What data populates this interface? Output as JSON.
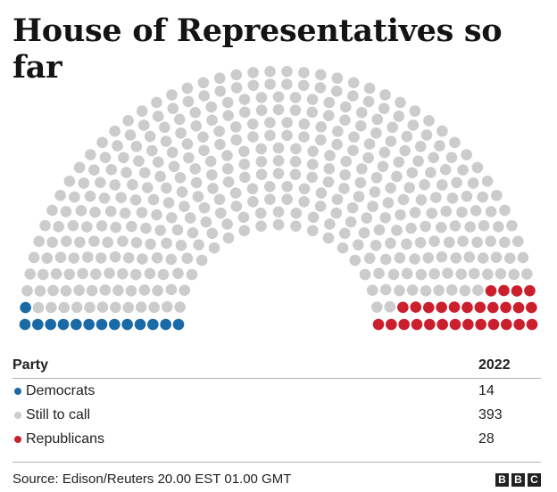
{
  "title": "House of Representatives so far",
  "chart_data": {
    "type": "hemicycle",
    "total_seats": 435,
    "parties": [
      {
        "name": "Democrats",
        "seats": 14,
        "color": "#1a6aa6"
      },
      {
        "name": "Still to call",
        "seats": 393,
        "color": "#cccccc"
      },
      {
        "name": "Republicans",
        "seats": 28,
        "color": "#cc1f2d"
      }
    ]
  },
  "table": {
    "header_party": "Party",
    "header_year": "2022",
    "rows": [
      {
        "label": "Democrats",
        "value": "14",
        "color": "#1a6aa6"
      },
      {
        "label": "Still to call",
        "value": "393",
        "color": "#cccccc"
      },
      {
        "label": "Republicans",
        "value": "28",
        "color": "#cc1f2d"
      }
    ]
  },
  "footer": {
    "source": "Source: Edison/Reuters 20.00 EST 01.00 GMT",
    "logo": [
      "B",
      "B",
      "C"
    ]
  }
}
